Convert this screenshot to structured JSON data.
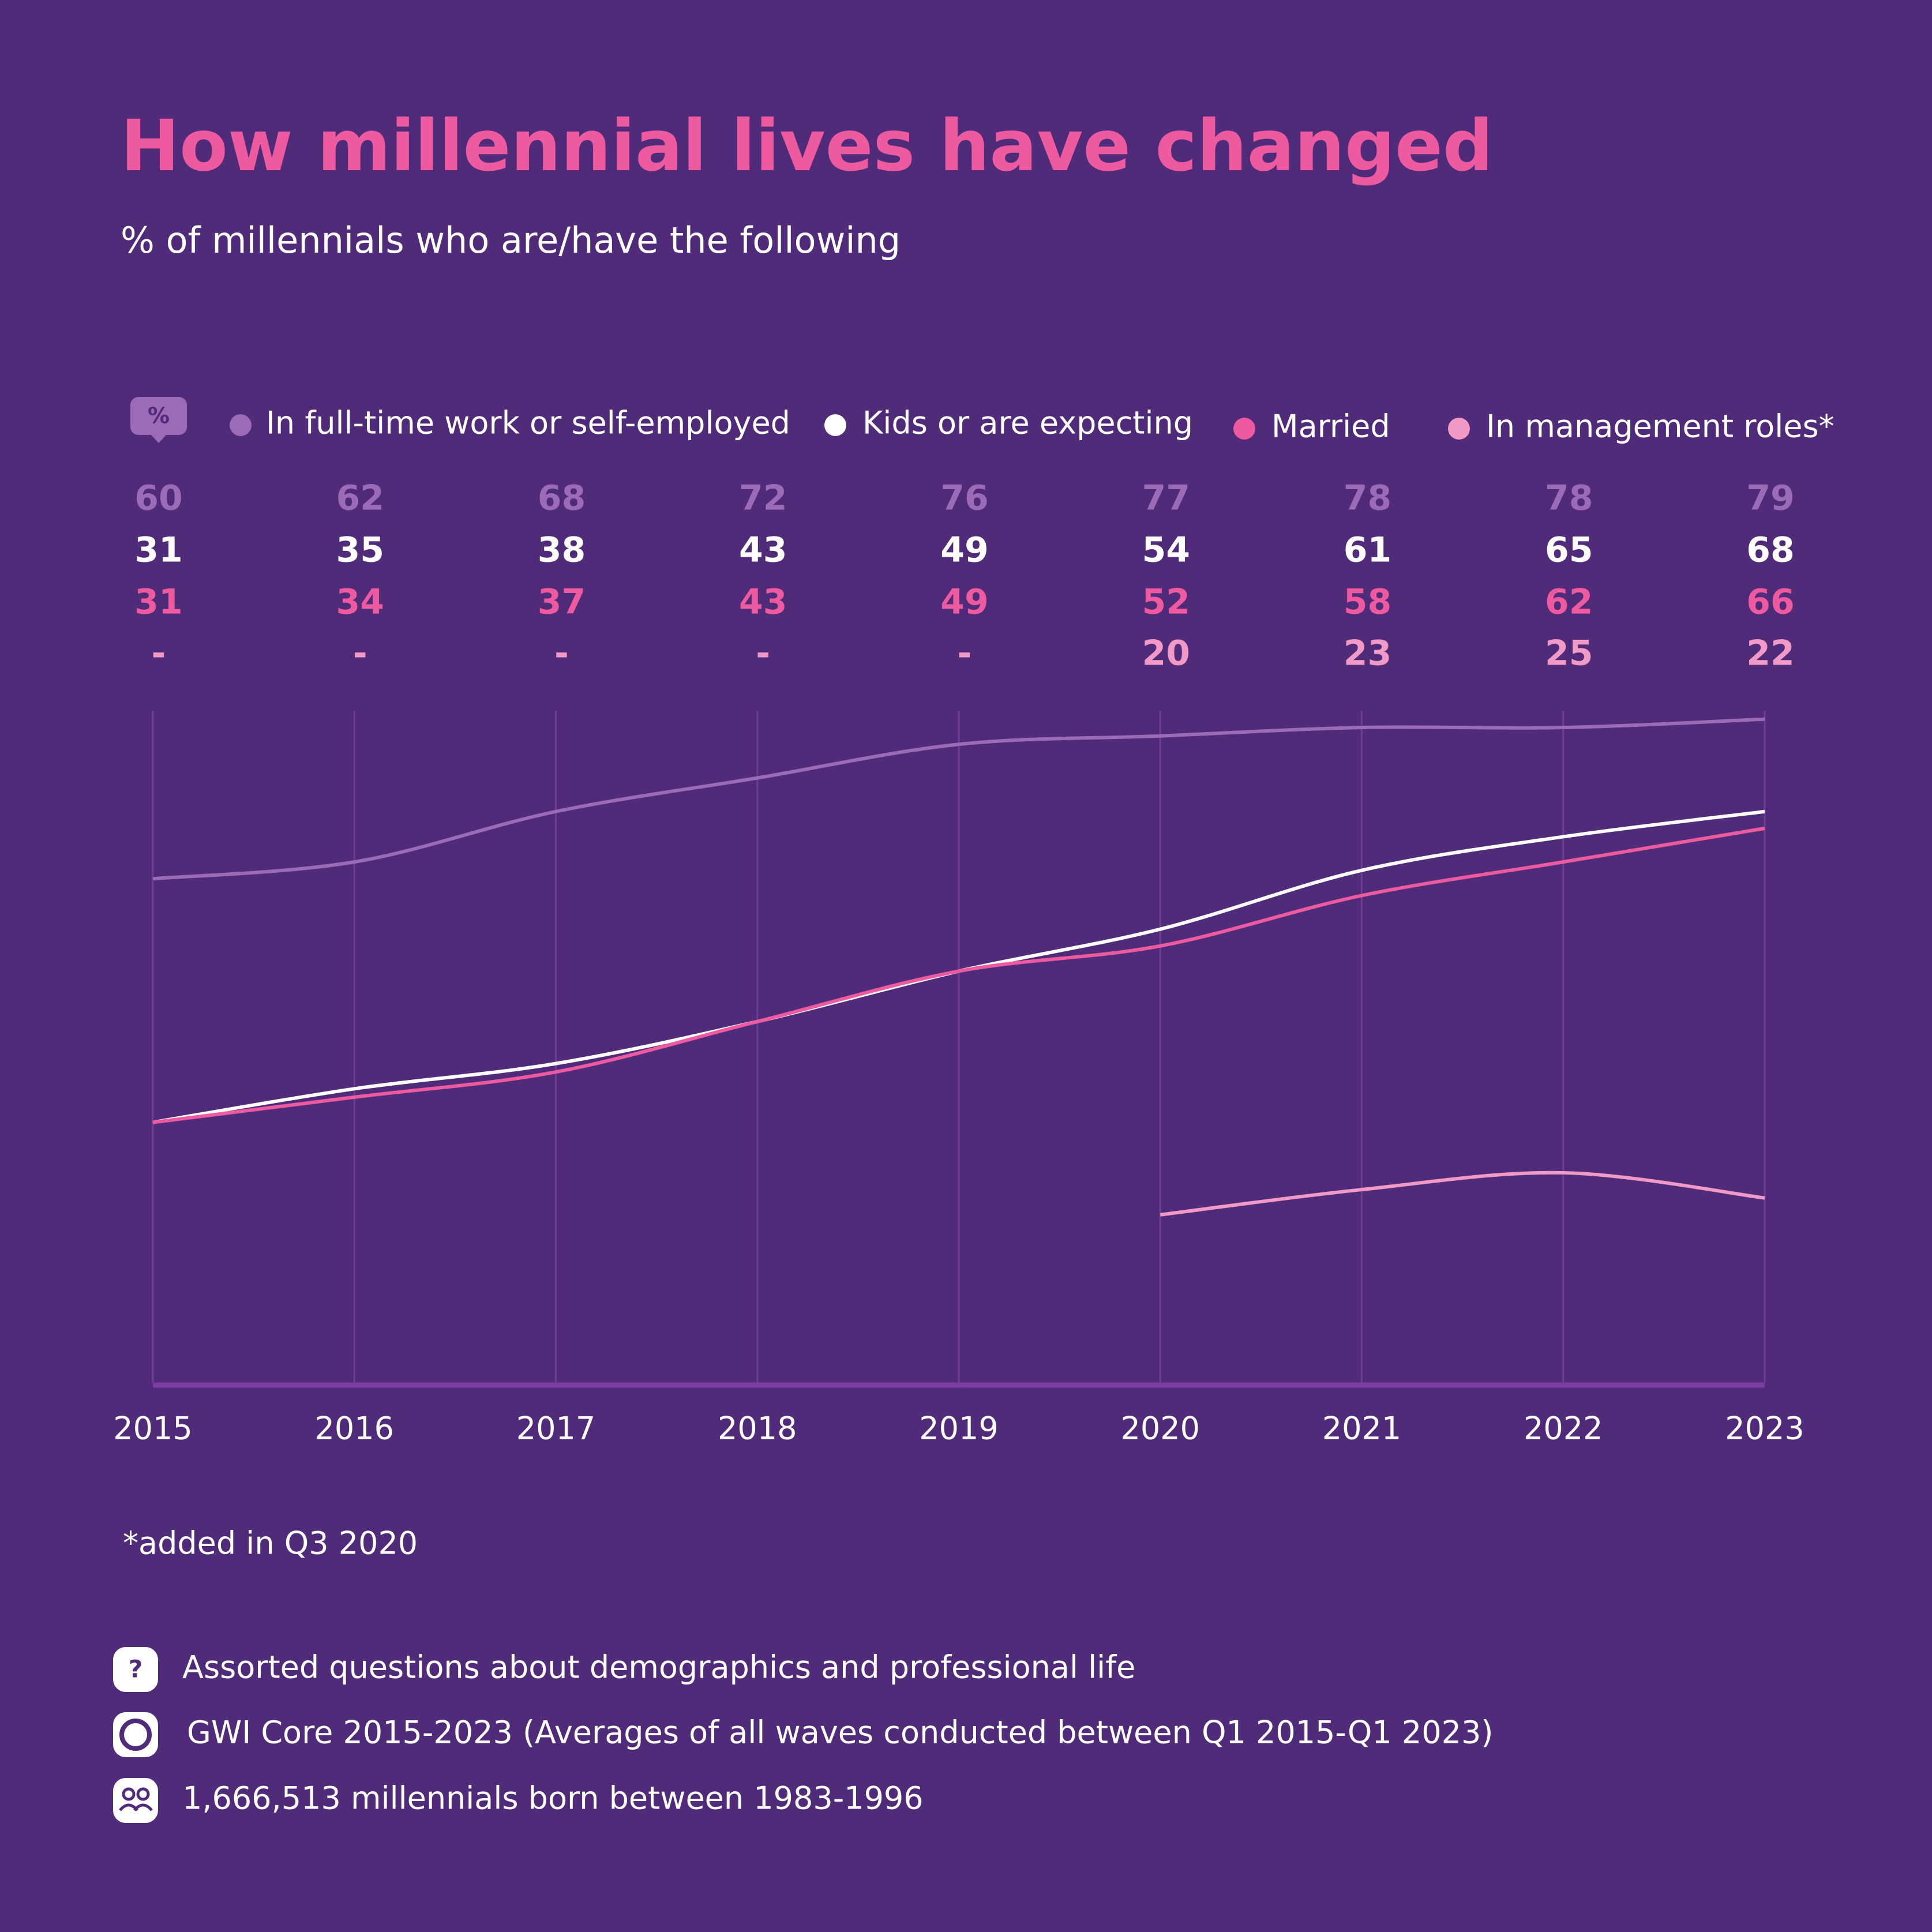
{
  "chart_data": {
    "type": "line",
    "title": "How millennial lives have changed",
    "subtitle": "% of millennials who are/have the following",
    "unit_label": "%",
    "categories": [
      "2015",
      "2016",
      "2017",
      "2018",
      "2019",
      "2020",
      "2021",
      "2022",
      "2023"
    ],
    "ylim": [
      0,
      80
    ],
    "series": [
      {
        "name": "In full-time work or self-employed",
        "color": "#9b6bb8",
        "values": [
          60,
          62,
          68,
          72,
          76,
          77,
          78,
          78,
          79
        ]
      },
      {
        "name": "Kids or are expecting",
        "color": "#ffffff",
        "values": [
          31,
          35,
          38,
          43,
          49,
          54,
          61,
          65,
          68
        ]
      },
      {
        "name": "Married",
        "color": "#ee5aa0",
        "values": [
          31,
          34,
          37,
          43,
          49,
          52,
          58,
          62,
          66
        ]
      },
      {
        "name": "In management roles*",
        "color": "#f29ac7",
        "values": [
          null,
          null,
          null,
          null,
          null,
          20,
          23,
          25,
          22
        ],
        "value_labels": [
          "-",
          "-",
          "-",
          "-",
          "-",
          "20",
          "23",
          "25",
          "22"
        ]
      }
    ],
    "footnote": "*added in Q3 2020"
  },
  "footer": {
    "items": [
      "Assorted questions about demographics and professional life",
      "GWI Core 2015-2023 (Averages of all waves conducted between Q1 2015-Q1 2023)",
      "1,666,513 millennials born between 1983-1996"
    ]
  }
}
